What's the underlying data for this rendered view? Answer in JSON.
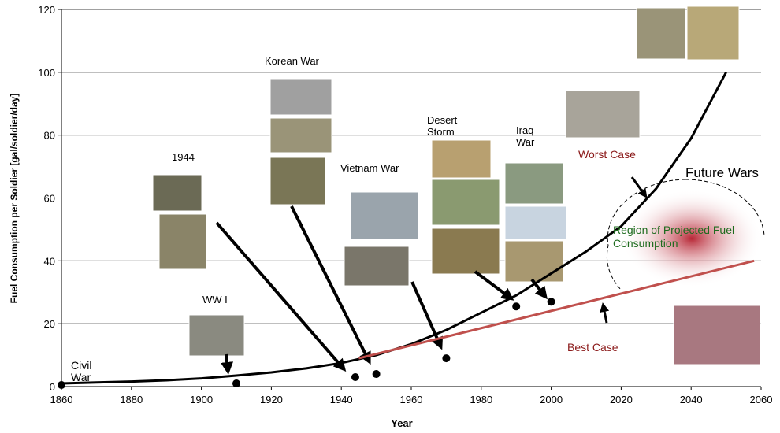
{
  "chart_data": {
    "type": "line",
    "xlabel": "Year",
    "ylabel": "Fuel Consumption per Soldier [gal/soldier/day]",
    "xlim": [
      1860,
      2060
    ],
    "xticks": [
      1860,
      1880,
      1900,
      1920,
      1940,
      1960,
      1980,
      2000,
      2020,
      2040,
      2060
    ],
    "ylim": [
      0,
      120
    ],
    "yticks": [
      0,
      20,
      40,
      60,
      80,
      100,
      120
    ],
    "grid": true,
    "series": [
      {
        "type": "line",
        "color": "#000000",
        "x": [
          1860,
          1870,
          1880,
          1890,
          1900,
          1910,
          1920,
          1930,
          1940,
          1950,
          1960,
          1970,
          1980,
          1990,
          2000,
          2010,
          2020,
          2030,
          2040,
          2050
        ],
        "values": [
          1,
          1.3,
          1.6,
          2,
          2.6,
          3.5,
          4.5,
          5.8,
          7.5,
          10,
          13.5,
          18,
          23.5,
          29,
          36,
          43,
          51,
          63,
          79,
          100
        ]
      },
      {
        "type": "scatter",
        "color": "#000000",
        "x": [
          1860,
          1910,
          1944,
          1950,
          1970,
          1990,
          2000
        ],
        "values": [
          0.5,
          1,
          3,
          4,
          9,
          25.5,
          27
        ]
      },
      {
        "type": "line",
        "color": "#c0504d",
        "x": [
          1945,
          2058
        ],
        "values": [
          9,
          40
        ]
      }
    ],
    "annotations": [
      "Civil War",
      "WW I",
      "1944",
      "Korean War",
      "Vietnam War",
      "Desert Storm",
      "Iraq War",
      "Worst Case",
      "Future Wars",
      "Region of Projected Fuel Consumption",
      "Best Case"
    ]
  }
}
